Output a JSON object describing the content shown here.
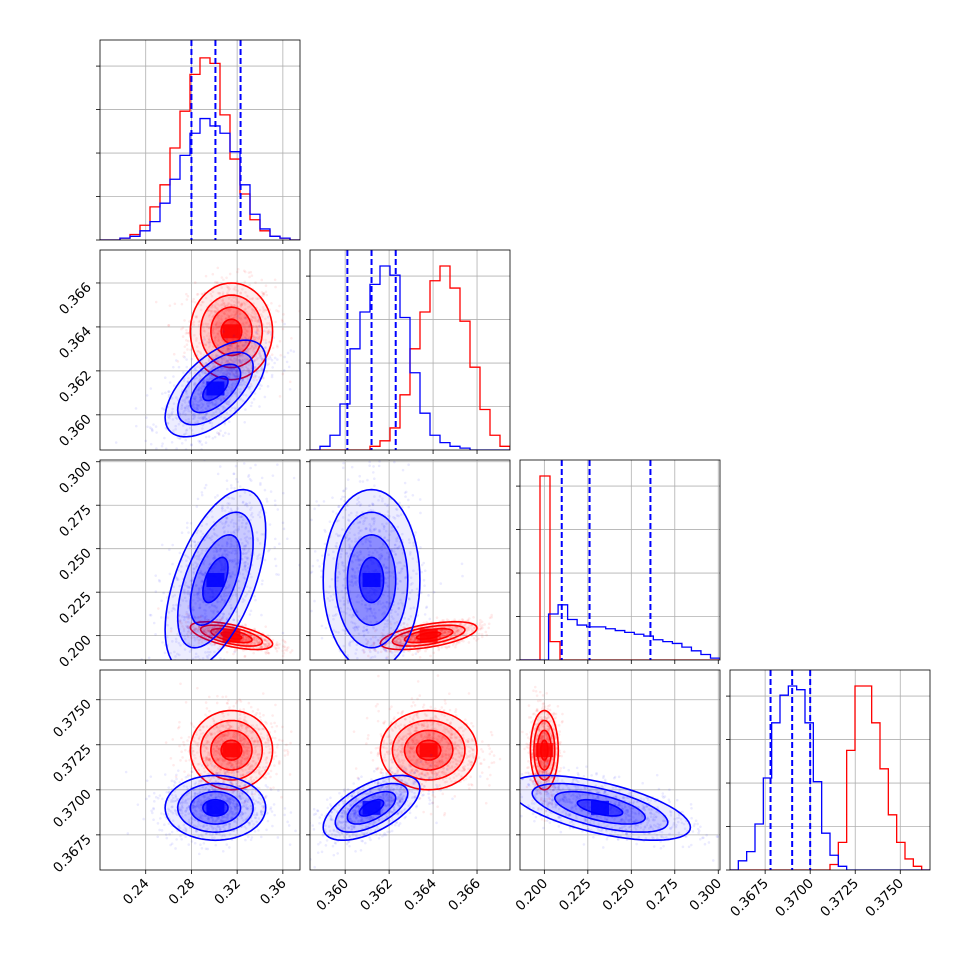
{
  "chart_data": {
    "type": "corner",
    "grid": true,
    "parameters": [
      {
        "range": [
          0.2,
          0.375
        ],
        "ticks": [
          0.24,
          0.28,
          0.32,
          0.36
        ],
        "tick_labels": [
          "0.24",
          "0.28",
          "0.32",
          "0.36"
        ]
      },
      {
        "range": [
          0.3584,
          0.3675
        ],
        "ticks": [
          0.36,
          0.362,
          0.364,
          0.366
        ],
        "tick_labels": [
          "0.360",
          "0.362",
          "0.364",
          "0.366"
        ]
      },
      {
        "range": [
          0.186,
          0.301
        ],
        "ticks": [
          0.2,
          0.225,
          0.25,
          0.275,
          0.3
        ],
        "tick_labels": [
          "0.200",
          "0.225",
          "0.250",
          "0.275",
          "0.300"
        ]
      },
      {
        "range": [
          0.36555,
          0.37665
        ],
        "ticks": [
          0.3675,
          0.37,
          0.3725,
          0.375
        ],
        "tick_labels": [
          "0.3675",
          "0.3700",
          "0.3725",
          "0.3750"
        ]
      }
    ],
    "series": [
      {
        "color": "#ff0000",
        "mean": [
          0.315,
          0.3638,
          0.2,
          0.3722
        ],
        "sd": [
          0.018,
          0.0011,
          0.004,
          0.0011
        ],
        "hist": [
          [
            0,
            0,
            1,
            3,
            8,
            18,
            30,
            50,
            70,
            90,
            99,
            96,
            68,
            44,
            25,
            11,
            5,
            2,
            1,
            0
          ],
          [
            0,
            0,
            0,
            0,
            0,
            0,
            2,
            5,
            12,
            30,
            55,
            75,
            92,
            100,
            88,
            70,
            45,
            22,
            8,
            2
          ],
          [
            0,
            0,
            100,
            10,
            0,
            0,
            0,
            0,
            0,
            0,
            0,
            0,
            0,
            0,
            0,
            0,
            0,
            0,
            0,
            0
          ],
          [
            0,
            0,
            0,
            0,
            0,
            0,
            0,
            0,
            0,
            0,
            0,
            0,
            3,
            15,
            65,
            100,
            100,
            80,
            55,
            30,
            15,
            6,
            2,
            0
          ]
        ]
      },
      {
        "color": "#0000ff",
        "mean": [
          0.301,
          0.3612,
          0.232,
          0.369
        ],
        "sd": [
          0.022,
          0.0011,
          0.026,
          0.0009
        ],
        "hist": [
          [
            0,
            0,
            1,
            2,
            5,
            10,
            20,
            33,
            46,
            58,
            66,
            62,
            58,
            48,
            30,
            14,
            6,
            2,
            1,
            0
          ],
          [
            0,
            2,
            8,
            25,
            55,
            75,
            90,
            100,
            95,
            72,
            42,
            20,
            8,
            4,
            2,
            1,
            0,
            0,
            0,
            0
          ],
          [
            0,
            0,
            0,
            25,
            30,
            22,
            19,
            18,
            18,
            17,
            16,
            15,
            14,
            13,
            11,
            10,
            9,
            7,
            5,
            3,
            1
          ],
          [
            0,
            5,
            10,
            25,
            50,
            80,
            95,
            100,
            98,
            80,
            48,
            20,
            8,
            2,
            0,
            0,
            0,
            0,
            0,
            0,
            0,
            0,
            0,
            0
          ]
        ],
        "quantile_lines": [
          [
            0.28,
            0.301,
            0.323
          ],
          [
            0.3601,
            0.3612,
            0.3623
          ],
          [
            0.21,
            0.226,
            0.261
          ],
          [
            0.3678,
            0.369,
            0.37
          ]
        ]
      }
    ],
    "correlations": [
      [
        0.0,
        0.6
      ],
      [
        0.0,
        -0.35
      ],
      [
        0.0,
        0.2
      ],
      [
        0.0,
        0.0
      ],
      [
        0.0,
        -0.35
      ],
      [
        0.0,
        0.6
      ],
      [
        0.0,
        0.0
      ],
      [
        -0.6,
        0.55
      ],
      [
        0.55,
        0.0
      ],
      [
        0.0,
        -0.6
      ]
    ]
  }
}
